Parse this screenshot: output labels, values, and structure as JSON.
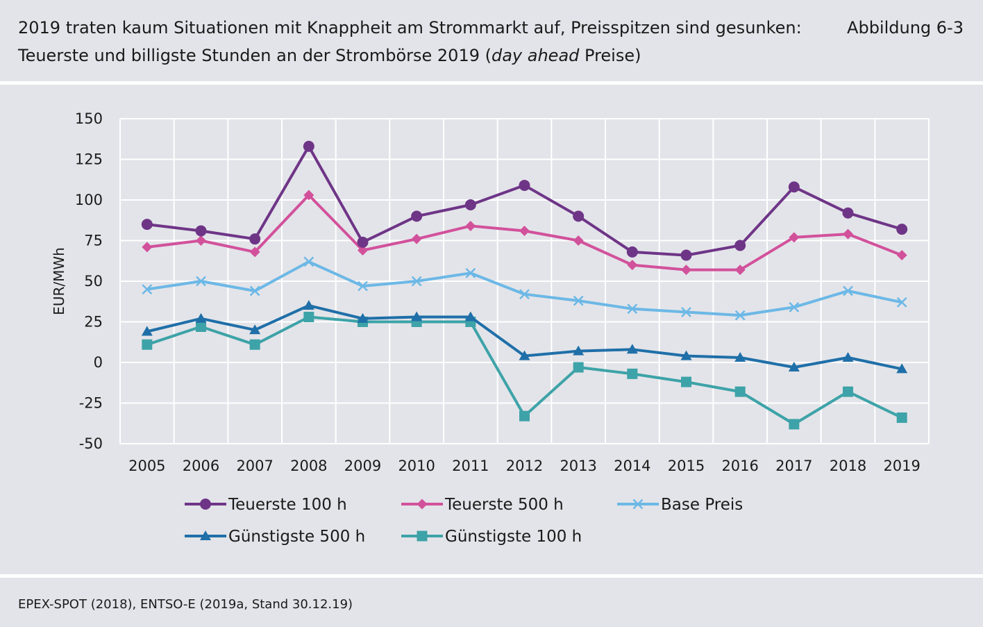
{
  "header": {
    "title_line1": "2019 traten kaum Situationen mit Knappheit am Strommarkt auf, Preisspitzen sind gesunken:",
    "figure_label": "Abbildung 6-3",
    "title_line2_part1": "Teuerste und billigste Stunden an der Strombörse 2019 (",
    "title_line2_italic": "day ahead",
    "title_line2_part2": " Preise)"
  },
  "footer": {
    "source": "EPEX-SPOT (2018), ENTSO-E (2019a, Stand 30.12.19)"
  },
  "chart_data": {
    "type": "line",
    "title": "",
    "xlabel": "",
    "ylabel": "EUR/MWh",
    "ylim": [
      -50,
      150
    ],
    "yticks": [
      -50,
      -25,
      0,
      25,
      50,
      75,
      100,
      125,
      150
    ],
    "grid": true,
    "legend_position": "bottom",
    "categories": [
      "2005",
      "2006",
      "2007",
      "2008",
      "2009",
      "2010",
      "2011",
      "2012",
      "2013",
      "2014",
      "2015",
      "2016",
      "2017",
      "2018",
      "2019"
    ],
    "series": [
      {
        "name": "Teuerste 100 h",
        "color": "#6e3587",
        "marker": "circle",
        "values": [
          85,
          81,
          76,
          133,
          74,
          90,
          97,
          109,
          90,
          68,
          66,
          72,
          108,
          92,
          82
        ]
      },
      {
        "name": "Teuerste 500 h",
        "color": "#d2519b",
        "marker": "diamond",
        "values": [
          71,
          75,
          68,
          103,
          69,
          76,
          84,
          81,
          75,
          60,
          57,
          57,
          77,
          79,
          66
        ]
      },
      {
        "name": "Base Preis",
        "color": "#6cb8e6",
        "marker": "x",
        "values": [
          45,
          50,
          44,
          62,
          47,
          50,
          55,
          42,
          38,
          33,
          31,
          29,
          34,
          44,
          37
        ]
      },
      {
        "name": "Günstigste 500 h",
        "color": "#1f6fa8",
        "marker": "triangle",
        "values": [
          19,
          27,
          20,
          35,
          27,
          28,
          28,
          4,
          7,
          8,
          4,
          3,
          -3,
          3,
          -4
        ]
      },
      {
        "name": "Günstigste 100 h",
        "color": "#3da3a8",
        "marker": "square",
        "values": [
          11,
          22,
          11,
          28,
          25,
          25,
          25,
          -33,
          -3,
          -7,
          -12,
          -18,
          -38,
          -18,
          -34
        ]
      }
    ]
  }
}
